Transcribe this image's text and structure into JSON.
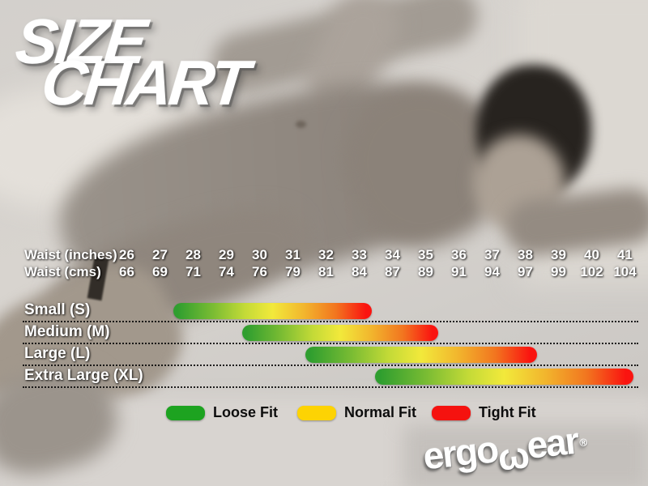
{
  "title": {
    "line1": "SIZE",
    "line2": "CHART"
  },
  "chart_data": {
    "type": "bar",
    "title": "SIZE CHART",
    "orientation": "horizontal_range_bars",
    "axis": {
      "range_inches": [
        26,
        41
      ],
      "rows": [
        {
          "label": "Waist (inches)",
          "ticks": [
            "26",
            "27",
            "28",
            "29",
            "30",
            "31",
            "32",
            "33",
            "34",
            "35",
            "36",
            "37",
            "38",
            "39",
            "40",
            "41"
          ]
        },
        {
          "label": "Waist (cms)",
          "ticks": [
            "66",
            "69",
            "71",
            "74",
            "76",
            "79",
            "81",
            "84",
            "87",
            "89",
            "91",
            "94",
            "97",
            "99",
            "102",
            "104"
          ]
        }
      ]
    },
    "series": [
      {
        "name": "Small (S)",
        "start_inches": 27.4,
        "end_inches": 33.4
      },
      {
        "name": "Medium (M)",
        "start_inches": 29.5,
        "end_inches": 35.4
      },
      {
        "name": "Large (L)",
        "start_inches": 31.4,
        "end_inches": 38.4
      },
      {
        "name": "Extra Large (XL)",
        "start_inches": 33.5,
        "end_inches": 41.3
      }
    ],
    "bar_gradient": [
      "#2f9e2f",
      "#7abc33",
      "#f2e93b",
      "#f2b52d",
      "#fa1410"
    ],
    "grid": "dotted_row_separators",
    "legend_position": "bottom",
    "legend": [
      {
        "label": "Loose Fit",
        "color": "#1da320"
      },
      {
        "label": "Normal Fit",
        "color": "#fdd303"
      },
      {
        "label": "Tight Fit",
        "color": "#f5120f"
      }
    ]
  },
  "brand": {
    "logo_pre": "ergo",
    "logo_glyph": "ω",
    "logo_post": "ear",
    "registered_mark": "®"
  }
}
